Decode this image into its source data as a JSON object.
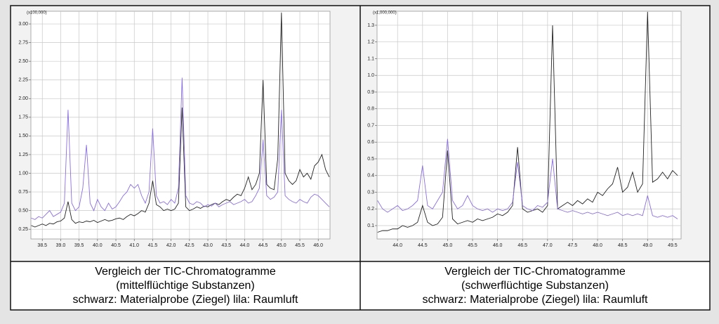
{
  "chart_data": [
    {
      "type": "line",
      "y_unit_label": "(x100,000)",
      "caption": [
        "Vergleich der TIC-Chromatogramme",
        "(mittelflüchtige Substanzen)",
        "schwarz: Materialprobe (Ziegel) lila: Raumluft"
      ],
      "x": [
        38.2,
        38.3,
        38.4,
        38.5,
        38.6,
        38.7,
        38.8,
        38.9,
        39.0,
        39.1,
        39.2,
        39.3,
        39.4,
        39.5,
        39.6,
        39.7,
        39.8,
        39.9,
        40.0,
        40.1,
        40.2,
        40.3,
        40.4,
        40.5,
        40.6,
        40.7,
        40.8,
        40.9,
        41.0,
        41.1,
        41.2,
        41.3,
        41.4,
        41.5,
        41.6,
        41.7,
        41.8,
        41.9,
        42.0,
        42.1,
        42.2,
        42.3,
        42.4,
        42.5,
        42.6,
        42.7,
        42.8,
        42.9,
        43.0,
        43.1,
        43.2,
        43.3,
        43.4,
        43.5,
        43.6,
        43.7,
        43.8,
        43.9,
        44.0,
        44.1,
        44.2,
        44.3,
        44.4,
        44.5,
        44.6,
        44.7,
        44.8,
        44.9,
        45.0,
        45.1,
        45.2,
        45.3,
        45.4,
        45.5,
        45.6,
        45.7,
        45.8,
        45.9,
        46.0,
        46.1,
        46.2,
        46.3
      ],
      "series": [
        {
          "color": "#222222",
          "values": [
            0.3,
            0.28,
            0.3,
            0.32,
            0.3,
            0.33,
            0.32,
            0.35,
            0.36,
            0.4,
            0.62,
            0.38,
            0.33,
            0.35,
            0.34,
            0.36,
            0.35,
            0.37,
            0.34,
            0.36,
            0.38,
            0.36,
            0.37,
            0.39,
            0.4,
            0.38,
            0.42,
            0.45,
            0.43,
            0.46,
            0.5,
            0.48,
            0.6,
            0.9,
            0.58,
            0.55,
            0.5,
            0.52,
            0.5,
            0.52,
            0.6,
            1.88,
            0.55,
            0.5,
            0.52,
            0.55,
            0.53,
            0.56,
            0.55,
            0.58,
            0.6,
            0.58,
            0.62,
            0.65,
            0.63,
            0.68,
            0.72,
            0.7,
            0.8,
            0.95,
            0.78,
            0.85,
            1.0,
            2.25,
            0.85,
            0.8,
            0.78,
            1.2,
            3.15,
            1.0,
            0.9,
            0.85,
            0.9,
            1.05,
            0.95,
            1.0,
            0.92,
            1.1,
            1.15,
            1.25,
            1.05,
            0.95
          ]
        },
        {
          "color": "#8a6fe0",
          "values": [
            0.4,
            0.38,
            0.42,
            0.4,
            0.45,
            0.5,
            0.42,
            0.45,
            0.48,
            0.6,
            1.85,
            0.6,
            0.5,
            0.55,
            0.8,
            1.38,
            0.6,
            0.5,
            0.65,
            0.55,
            0.5,
            0.6,
            0.52,
            0.55,
            0.62,
            0.7,
            0.75,
            0.85,
            0.8,
            0.85,
            0.7,
            0.6,
            0.75,
            1.6,
            0.7,
            0.6,
            0.62,
            0.58,
            0.65,
            0.6,
            0.8,
            2.28,
            0.7,
            0.6,
            0.58,
            0.62,
            0.6,
            0.55,
            0.58,
            0.56,
            0.6,
            0.55,
            0.58,
            0.6,
            0.62,
            0.58,
            0.6,
            0.62,
            0.65,
            0.6,
            0.62,
            0.7,
            0.8,
            1.45,
            0.7,
            0.65,
            0.68,
            0.75,
            1.85,
            0.7,
            0.65,
            0.62,
            0.6,
            0.65,
            0.62,
            0.6,
            0.68,
            0.72,
            0.7,
            0.65,
            0.6,
            0.55
          ]
        }
      ],
      "xlim": [
        38.19,
        46.32
      ],
      "ylim": [
        0.12,
        3.17
      ],
      "xticks": [
        38.5,
        {
          "value": 39,
          "label": "39.0"
        },
        39.5,
        {
          "value": 40,
          "label": "40.0"
        },
        40.5,
        {
          "value": 41,
          "label": "41.0"
        },
        41.5,
        {
          "value": 42,
          "label": "42.0"
        },
        42.5,
        {
          "value": 43,
          "label": "43.0"
        },
        43.5,
        {
          "value": 44,
          "label": "44.0"
        },
        44.5,
        {
          "value": 45,
          "label": "45.0"
        },
        45.5,
        {
          "value": 46,
          "label": "46.0"
        }
      ],
      "yticks": [
        0.25,
        {
          "value": 0.5,
          "label": "0.50"
        },
        0.75,
        {
          "value": 1,
          "label": "1.00"
        },
        1.25,
        {
          "value": 1.5,
          "label": "1.50"
        },
        1.75,
        {
          "value": 2,
          "label": "2.00"
        },
        2.25,
        {
          "value": 2.5,
          "label": "2.50"
        },
        2.75,
        {
          "value": 3,
          "label": "3.00"
        }
      ],
      "grid": true
    },
    {
      "type": "line",
      "y_unit_label": "(x1,000,000)",
      "caption": [
        "Vergleich der TIC-Chromatogramme",
        "(schwerflüchtige Substanzen)",
        "schwarz: Materialprobe (Ziegel) lila: Raumluft"
      ],
      "x": [
        43.6,
        43.7,
        43.8,
        43.9,
        44.0,
        44.1,
        44.2,
        44.3,
        44.4,
        44.5,
        44.6,
        44.7,
        44.8,
        44.9,
        45.0,
        45.1,
        45.2,
        45.3,
        45.4,
        45.5,
        45.6,
        45.7,
        45.8,
        45.9,
        46.0,
        46.1,
        46.2,
        46.3,
        46.4,
        46.5,
        46.6,
        46.7,
        46.8,
        46.9,
        47.0,
        47.1,
        47.2,
        47.3,
        47.4,
        47.5,
        47.6,
        47.7,
        47.8,
        47.9,
        48.0,
        48.1,
        48.2,
        48.3,
        48.4,
        48.5,
        48.6,
        48.7,
        48.8,
        48.9,
        49.0,
        49.1,
        49.2,
        49.3,
        49.4,
        49.5,
        49.6
      ],
      "series": [
        {
          "color": "#222222",
          "values": [
            0.06,
            0.07,
            0.07,
            0.08,
            0.08,
            0.1,
            0.09,
            0.1,
            0.12,
            0.22,
            0.12,
            0.1,
            0.11,
            0.15,
            0.55,
            0.14,
            0.11,
            0.12,
            0.13,
            0.12,
            0.14,
            0.13,
            0.14,
            0.15,
            0.17,
            0.16,
            0.18,
            0.22,
            0.57,
            0.2,
            0.18,
            0.19,
            0.2,
            0.18,
            0.22,
            1.3,
            0.2,
            0.22,
            0.24,
            0.22,
            0.25,
            0.23,
            0.26,
            0.24,
            0.3,
            0.28,
            0.32,
            0.35,
            0.45,
            0.3,
            0.33,
            0.42,
            0.3,
            0.35,
            1.38,
            0.36,
            0.38,
            0.42,
            0.38,
            0.43,
            0.4
          ]
        },
        {
          "color": "#8a6fe0",
          "values": [
            0.25,
            0.2,
            0.18,
            0.2,
            0.22,
            0.19,
            0.2,
            0.22,
            0.25,
            0.46,
            0.22,
            0.2,
            0.25,
            0.3,
            0.62,
            0.25,
            0.2,
            0.22,
            0.28,
            0.22,
            0.2,
            0.19,
            0.2,
            0.18,
            0.2,
            0.19,
            0.2,
            0.24,
            0.48,
            0.22,
            0.2,
            0.19,
            0.22,
            0.21,
            0.24,
            0.5,
            0.2,
            0.19,
            0.18,
            0.19,
            0.18,
            0.17,
            0.18,
            0.17,
            0.18,
            0.17,
            0.16,
            0.17,
            0.18,
            0.16,
            0.17,
            0.16,
            0.17,
            0.16,
            0.28,
            0.16,
            0.15,
            0.16,
            0.15,
            0.16,
            0.14
          ]
        }
      ],
      "xlim": [
        43.59,
        49.67
      ],
      "ylim": [
        0.02,
        1.384
      ],
      "xticks": [
        {
          "value": 44,
          "label": "44.0"
        },
        44.5,
        {
          "value": 45,
          "label": "45.0"
        },
        45.5,
        {
          "value": 46,
          "label": "46.0"
        },
        46.5,
        {
          "value": 47,
          "label": "47.0"
        },
        47.5,
        {
          "value": 48,
          "label": "48.0"
        },
        48.5,
        {
          "value": 49,
          "label": "49.0"
        },
        49.5
      ],
      "yticks": [
        0.1,
        0.2,
        0.3,
        0.4,
        0.5,
        0.6,
        0.7,
        0.8,
        0.9,
        {
          "value": 1,
          "label": "1.0"
        },
        1.1,
        1.2,
        1.3
      ],
      "grid": true
    }
  ]
}
